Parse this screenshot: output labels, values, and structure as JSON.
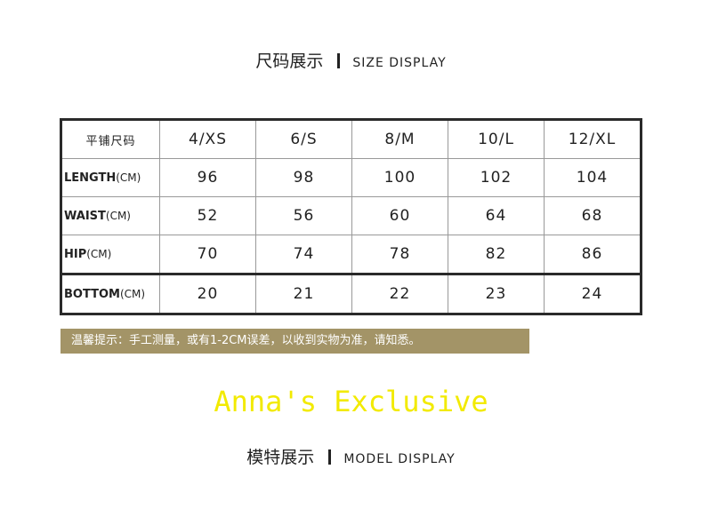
{
  "size_title": {
    "zh": "尺码展示",
    "en": "SIZE DISPLAY"
  },
  "table": {
    "corner": "平铺尺码",
    "unit": "(CM)",
    "columns": [
      "4/XS",
      "6/S",
      "8/M",
      "10/L",
      "12/XL"
    ],
    "rows": [
      {
        "label": "LENGTH",
        "values": [
          "96",
          "98",
          "100",
          "102",
          "104"
        ]
      },
      {
        "label": "WAIST",
        "values": [
          "52",
          "56",
          "60",
          "64",
          "68"
        ]
      },
      {
        "label": "HIP",
        "values": [
          "70",
          "74",
          "78",
          "82",
          "86"
        ]
      },
      {
        "label": "BOTTOM",
        "values": [
          "20",
          "21",
          "22",
          "23",
          "24"
        ]
      }
    ]
  },
  "watermark": "Anna's Exclusive",
  "note": "温馨提示：手工测量，或有1-2CM误差，以收到实物为准，请知悉。",
  "model_title": {
    "zh": "模特展示",
    "en": "MODEL DISPLAY"
  },
  "colors": {
    "note_bg": "#a39467",
    "watermark": "#f2ea00"
  }
}
